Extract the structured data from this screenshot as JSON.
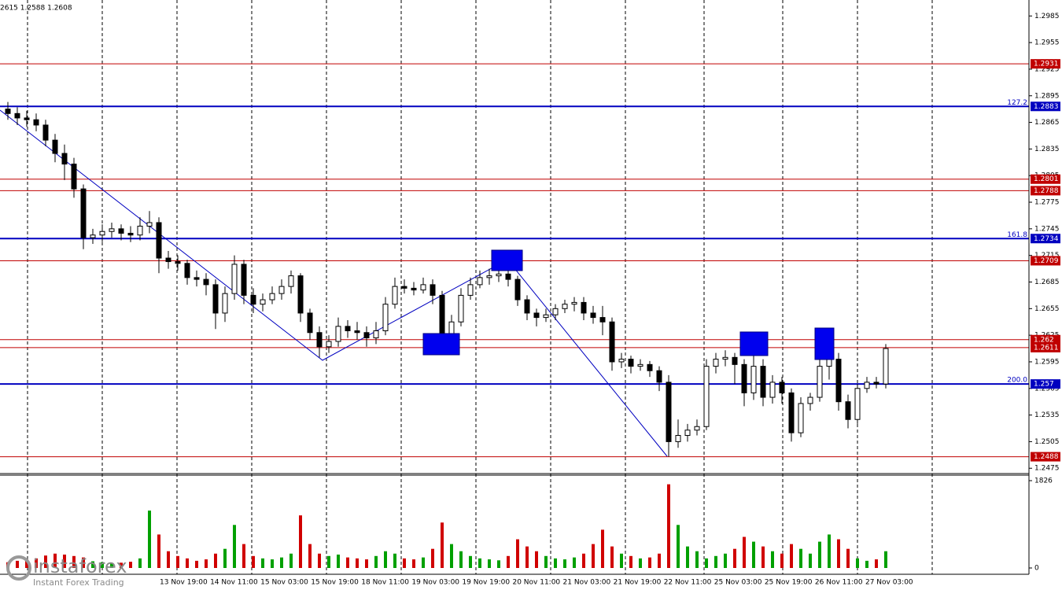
{
  "chart_data": {
    "type": "candlestick",
    "info": "2615 1.2588 1.2608",
    "watermark": "instaforex",
    "watermark_sub": "Instant Forex Trading",
    "up_color": "#ffffff",
    "down_color": "#000000",
    "volume_up_color": "#00a000",
    "volume_down_color": "#d00000",
    "ylim": [
      1.2469,
      1.3003
    ],
    "yticks": [
      1.2985,
      1.2955,
      1.2925,
      1.2895,
      1.2865,
      1.2835,
      1.2805,
      1.2775,
      1.2745,
      1.2715,
      1.2685,
      1.2655,
      1.2625,
      1.2595,
      1.2565,
      1.2535,
      1.2505,
      1.2475
    ],
    "vlim": [
      0,
      1826
    ],
    "vticks": [
      0,
      1826
    ],
    "time_labels": [
      "13 Nov 19:00",
      "14 Nov 11:00",
      "15 Nov 03:00",
      "15 Nov 19:00",
      "18 Nov 11:00",
      "19 Nov 03:00",
      "19 Nov 19:00",
      "20 Nov 11:00",
      "21 Nov 03:00",
      "21 Nov 19:00",
      "22 Nov 11:00",
      "25 Nov 03:00",
      "25 Nov 19:00",
      "26 Nov 11:00",
      "27 Nov 03:00"
    ],
    "levels": [
      {
        "price": 1.2931,
        "color": "#c00000"
      },
      {
        "price": 1.2883,
        "color": "#0000c0",
        "fib": "127.2"
      },
      {
        "price": 1.2801,
        "color": "#c00000"
      },
      {
        "price": 1.2788,
        "color": "#c00000"
      },
      {
        "price": 1.2734,
        "color": "#0000c0",
        "fib": "161.8"
      },
      {
        "price": 1.2709,
        "color": "#c00000"
      },
      {
        "price": 1.262,
        "color": "#c00000"
      },
      {
        "price": 1.2611,
        "color": "#c00000"
      },
      {
        "price": 1.257,
        "color": "#0000c0",
        "fib": "200.0"
      },
      {
        "price": 1.2488,
        "color": "#c00000"
      }
    ],
    "open": [
      1.288,
      1.2875,
      1.287,
      1.2868,
      1.2862,
      1.2845,
      1.283,
      1.2818,
      1.279,
      1.2735,
      1.2738,
      1.2742,
      1.2745,
      1.274,
      1.2738,
      1.2748,
      1.2752,
      1.2712,
      1.2708,
      1.2706,
      1.269,
      1.2688,
      1.2682,
      1.265,
      1.2672,
      1.2705,
      1.267,
      1.266,
      1.2665,
      1.2672,
      1.268,
      1.2692,
      1.265,
      1.2628,
      1.2612,
      1.2618,
      1.2635,
      1.263,
      1.2628,
      1.2622,
      1.263,
      1.266,
      1.268,
      1.2678,
      1.2676,
      1.2682,
      1.267,
      1.262,
      1.264,
      1.267,
      1.2682,
      1.269,
      1.2692,
      1.2694,
      1.2688,
      1.2665,
      1.265,
      1.2645,
      1.2648,
      1.2655,
      1.266,
      1.2662,
      1.265,
      1.2645,
      1.264,
      1.2595,
      1.2598,
      1.259,
      1.2592,
      1.2585,
      1.2572,
      1.2505,
      1.2512,
      1.2518,
      1.2522,
      1.259,
      1.2598,
      1.26,
      1.2592,
      1.256,
      1.259,
      1.2555,
      1.2572,
      1.256,
      1.2515,
      1.2548,
      1.2555,
      1.259,
      1.2598,
      1.255,
      1.253,
      1.2565,
      1.2572,
      1.257
    ],
    "high": [
      1.2888,
      1.2882,
      1.2878,
      1.2875,
      1.2868,
      1.2852,
      1.284,
      1.2825,
      1.2795,
      1.2745,
      1.275,
      1.2752,
      1.275,
      1.2748,
      1.2758,
      1.2765,
      1.2758,
      1.272,
      1.2715,
      1.271,
      1.2698,
      1.2695,
      1.2688,
      1.268,
      1.2715,
      1.271,
      1.2678,
      1.2672,
      1.268,
      1.2688,
      1.2698,
      1.2695,
      1.2655,
      1.2635,
      1.2625,
      1.2645,
      1.2642,
      1.264,
      1.2635,
      1.264,
      1.2668,
      1.269,
      1.2688,
      1.2685,
      1.269,
      1.2688,
      1.2675,
      1.2648,
      1.2678,
      1.269,
      1.2698,
      1.27,
      1.2705,
      1.27,
      1.2692,
      1.267,
      1.2655,
      1.2655,
      1.266,
      1.2665,
      1.2668,
      1.2668,
      1.2658,
      1.2658,
      1.2645,
      1.2605,
      1.2602,
      1.2598,
      1.2596,
      1.259,
      1.258,
      1.253,
      1.2525,
      1.253,
      1.2598,
      1.2605,
      1.2608,
      1.2605,
      1.2598,
      1.262,
      1.2598,
      1.258,
      1.2578,
      1.2565,
      1.2555,
      1.256,
      1.26,
      1.262,
      1.2605,
      1.2558,
      1.257,
      1.2578,
      1.2578,
      1.2615
    ],
    "low": [
      1.2868,
      1.2862,
      1.286,
      1.2855,
      1.2838,
      1.282,
      1.28,
      1.278,
      1.2722,
      1.2728,
      1.273,
      1.2735,
      1.2732,
      1.273,
      1.2732,
      1.274,
      1.2695,
      1.27,
      1.2698,
      1.2682,
      1.268,
      1.267,
      1.2632,
      1.264,
      1.2665,
      1.266,
      1.265,
      1.2652,
      1.266,
      1.2665,
      1.2672,
      1.264,
      1.262,
      1.26,
      1.2605,
      1.2612,
      1.2622,
      1.262,
      1.2612,
      1.2615,
      1.2625,
      1.2655,
      1.2672,
      1.267,
      1.2672,
      1.266,
      1.261,
      1.2615,
      1.2635,
      1.2665,
      1.2678,
      1.2682,
      1.2685,
      1.268,
      1.2658,
      1.2642,
      1.2635,
      1.264,
      1.2642,
      1.265,
      1.2652,
      1.2642,
      1.2638,
      1.2625,
      1.2585,
      1.2588,
      1.2582,
      1.2585,
      1.2578,
      1.2562,
      1.2488,
      1.2498,
      1.2505,
      1.2512,
      1.2518,
      1.2582,
      1.259,
      1.257,
      1.2545,
      1.2552,
      1.2545,
      1.2548,
      1.2548,
      1.2505,
      1.251,
      1.254,
      1.255,
      1.2575,
      1.254,
      1.252,
      1.2525,
      1.256,
      1.2565,
      1.2565
    ],
    "close": [
      1.2875,
      1.287,
      1.2868,
      1.2862,
      1.2845,
      1.283,
      1.2818,
      1.279,
      1.2735,
      1.2738,
      1.2742,
      1.2745,
      1.274,
      1.2738,
      1.2748,
      1.2752,
      1.2712,
      1.2708,
      1.2706,
      1.269,
      1.2688,
      1.2682,
      1.265,
      1.2672,
      1.2705,
      1.267,
      1.266,
      1.2665,
      1.2672,
      1.268,
      1.2692,
      1.265,
      1.2628,
      1.2612,
      1.2618,
      1.2635,
      1.263,
      1.2628,
      1.2622,
      1.263,
      1.266,
      1.268,
      1.2678,
      1.2676,
      1.2682,
      1.267,
      1.262,
      1.264,
      1.267,
      1.2682,
      1.269,
      1.2692,
      1.2694,
      1.2688,
      1.2665,
      1.265,
      1.2645,
      1.2648,
      1.2655,
      1.266,
      1.2662,
      1.265,
      1.2645,
      1.264,
      1.2595,
      1.2598,
      1.259,
      1.2592,
      1.2585,
      1.2572,
      1.2505,
      1.2512,
      1.2518,
      1.2522,
      1.259,
      1.2598,
      1.26,
      1.2592,
      1.256,
      1.259,
      1.2555,
      1.2572,
      1.256,
      1.2515,
      1.2548,
      1.2555,
      1.259,
      1.2598,
      1.255,
      1.253,
      1.2565,
      1.2572,
      1.257,
      1.261
    ],
    "volume": [
      120,
      150,
      180,
      200,
      260,
      300,
      280,
      250,
      220,
      140,
      120,
      100,
      110,
      130,
      200,
      1200,
      700,
      350,
      250,
      200,
      150,
      180,
      300,
      400,
      900,
      500,
      250,
      200,
      180,
      220,
      300,
      1100,
      500,
      300,
      250,
      280,
      220,
      200,
      180,
      250,
      350,
      300,
      200,
      180,
      220,
      400,
      950,
      500,
      350,
      250,
      200,
      180,
      160,
      250,
      600,
      450,
      350,
      250,
      200,
      180,
      220,
      300,
      500,
      800,
      450,
      300,
      250,
      200,
      220,
      300,
      1750,
      900,
      450,
      350,
      200,
      250,
      300,
      400,
      650,
      550,
      450,
      350,
      300,
      500,
      400,
      300,
      550,
      700,
      600,
      400,
      200,
      150,
      180,
      350
    ]
  }
}
